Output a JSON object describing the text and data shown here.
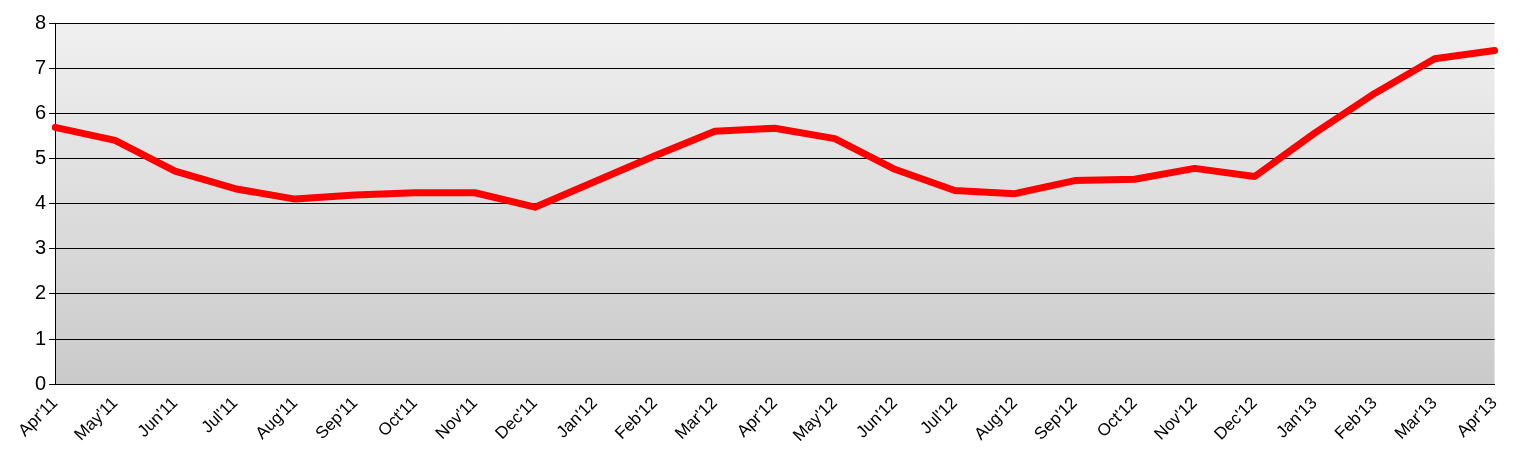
{
  "chart_data": {
    "type": "line",
    "categories": [
      "Apr'11",
      "May'11",
      "Jun'11",
      "Jul'11",
      "Aug'11",
      "Sep'11",
      "Oct'11",
      "Nov'11",
      "Dec'11",
      "Jan'12",
      "Feb'12",
      "Mar'12",
      "Apr'12",
      "May'12",
      "Jun'12",
      "Jul'12",
      "Aug'12",
      "Sep'12",
      "Oct'12",
      "Nov'12",
      "Dec'12",
      "Jan'13",
      "Feb'13",
      "Mar'13",
      "Apr'13"
    ],
    "series": [
      {
        "color": "#ff0000",
        "values": [
          5.69,
          5.4,
          4.72,
          4.33,
          4.1,
          4.19,
          4.24,
          4.24,
          3.92,
          4.49,
          5.06,
          5.6,
          5.67,
          5.44,
          4.76,
          4.29,
          4.22,
          4.51,
          4.54,
          4.78,
          4.6,
          5.56,
          6.44,
          7.21,
          7.39
        ]
      }
    ],
    "ylim": [
      0,
      8
    ],
    "yticks": [
      0,
      1,
      2,
      3,
      4,
      5,
      6,
      7,
      8
    ],
    "grid": "y",
    "legend": false,
    "marker": "none",
    "line_style": "solid"
  }
}
